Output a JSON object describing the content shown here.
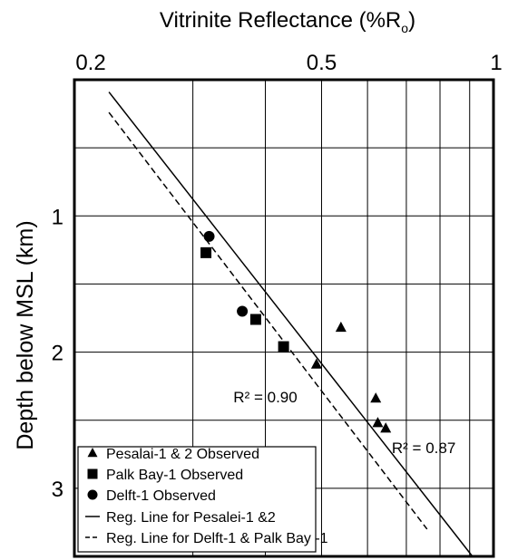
{
  "chart_data": {
    "type": "scatter",
    "title": "",
    "xlabel": "Vitrinite Reflectance (%R",
    "xlabel_sub": "o",
    "xlabel_close": ")",
    "ylabel": "Depth below MSL (km)",
    "x_scale": "log",
    "x_axis_position": "top",
    "y_inverted": true,
    "xlim": [
      0.2,
      1.0
    ],
    "ylim": [
      0.0,
      3.5
    ],
    "grid": true,
    "x_ticks": [
      {
        "value": 0.2,
        "label": "0.2"
      },
      {
        "value": 0.5,
        "label": "0.5"
      },
      {
        "value": 1.0,
        "label": "1"
      }
    ],
    "x_gridlines": [
      0.3,
      0.4,
      0.5,
      0.6,
      0.7,
      0.8,
      0.9
    ],
    "y_ticks": [
      {
        "value": 1,
        "label": "1"
      },
      {
        "value": 2,
        "label": "2"
      },
      {
        "value": 3,
        "label": "3"
      }
    ],
    "y_gridlines": [
      0.5,
      1,
      1.5,
      2,
      2.5,
      3
    ],
    "series": [
      {
        "name": "Pesalai-1 & 2 Observed",
        "marker": "triangle",
        "x": [
          0.54,
          0.49,
          0.62,
          0.625,
          0.645
        ],
        "y": [
          1.82,
          2.09,
          2.34,
          2.52,
          2.56
        ]
      },
      {
        "name": "Palk Bay-1 Observed",
        "marker": "square",
        "x": [
          0.316,
          0.385,
          0.43
        ],
        "y": [
          1.27,
          1.76,
          1.96
        ]
      },
      {
        "name": "Delft-1 Observed",
        "marker": "circle",
        "x": [
          0.32,
          0.365
        ],
        "y": [
          1.15,
          1.7
        ]
      }
    ],
    "lines": [
      {
        "name": "Reg. Line for Pesalei-1 &2",
        "style": "solid",
        "r2_label": "R² = 0.87",
        "points": [
          [
            0.215,
            0.09
          ],
          [
            0.91,
            3.5
          ]
        ]
      },
      {
        "name": "Reg. Line for Delft-1 & Palk Bay -1",
        "style": "dashed",
        "r2_label": "R² = 0.90",
        "points": [
          [
            0.215,
            0.24
          ],
          [
            0.76,
            3.3
          ]
        ]
      }
    ],
    "annotations": [
      {
        "text": "R² = 0.90",
        "x": 0.4,
        "y": 2.37
      },
      {
        "text": "R² = 0.87",
        "x": 0.75,
        "y": 2.74
      }
    ],
    "legend": {
      "position": "bottom-left",
      "entries": [
        {
          "label": "Pesalai-1 & 2 Observed",
          "symbol": "triangle"
        },
        {
          "label": "Palk Bay-1 Observed",
          "symbol": "square"
        },
        {
          "label": "Delft-1 Observed",
          "symbol": "circle"
        },
        {
          "label": "Reg. Line for Pesalei-1 &2",
          "symbol": "solid-line"
        },
        {
          "label": "Reg. Line for Delft-1 & Palk Bay -1",
          "symbol": "dashed-line"
        }
      ]
    }
  }
}
